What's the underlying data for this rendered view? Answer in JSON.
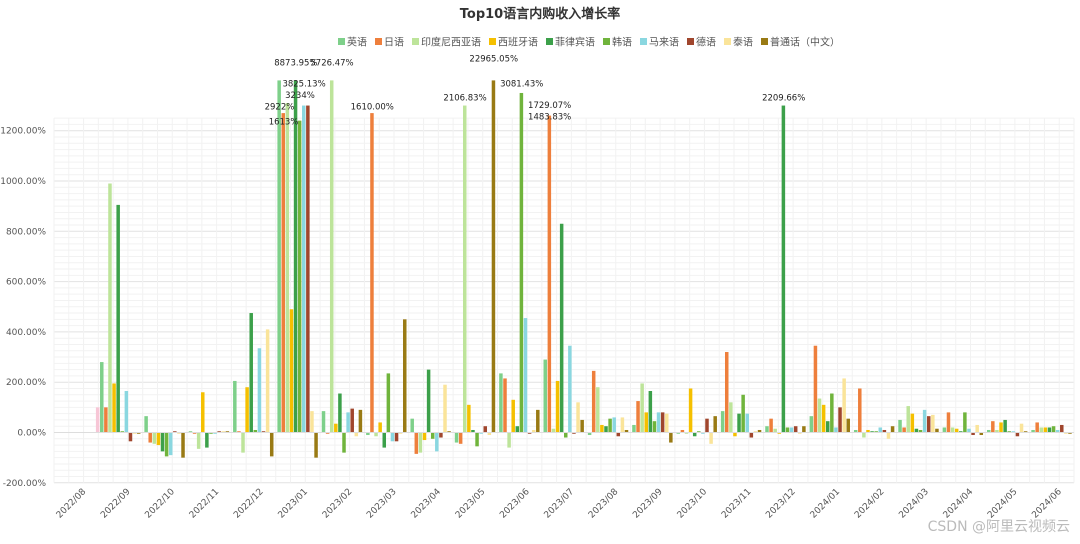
{
  "chart_data": {
    "type": "bar",
    "title": "Top10语言内购收入增长率",
    "legend_position": "top",
    "grid": true,
    "ylim": [
      -200,
      1400
    ],
    "y_ticks": [
      -200,
      0,
      200,
      400,
      600,
      800,
      1000,
      1200
    ],
    "y_tick_labels": [
      "-200.00%",
      "0.00%",
      "200.00%",
      "400.00%",
      "600.00%",
      "800.00%",
      "1000.00%",
      "1200.00%"
    ],
    "categories": [
      "2022/08",
      "2022/09",
      "2022/10",
      "2022/11",
      "2022/12",
      "2023/01",
      "2023/02",
      "2023/03",
      "2023/04",
      "2023/05",
      "2023/06",
      "2023/07",
      "2023/08",
      "2023/09",
      "2023/10",
      "2023/11",
      "2023/12",
      "2024/01",
      "2024/02",
      "2024/03",
      "2024/04",
      "2024/05",
      "2024/06"
    ],
    "series": [
      {
        "name": "英语",
        "color": "#7ed08a",
        "values": [
          null,
          280,
          65,
          5,
          205,
          1400,
          85,
          -10,
          55,
          -40,
          235,
          290,
          -10,
          30,
          -5,
          85,
          25,
          65,
          10,
          50,
          20,
          10,
          10
        ]
      },
      {
        "name": "日语",
        "color": "#ee7f3c",
        "values": [
          null,
          100,
          -40,
          -5,
          5,
          1270,
          -5,
          1270,
          -85,
          -45,
          215,
          1260,
          245,
          125,
          10,
          320,
          55,
          345,
          175,
          20,
          80,
          45,
          40
        ]
      },
      {
        "name": "印度尼西亚语",
        "color": "#bde49a",
        "values": [
          null,
          990,
          -45,
          -65,
          -80,
          1310,
          1400,
          -15,
          -80,
          1300,
          -60,
          15,
          180,
          195,
          -5,
          120,
          15,
          135,
          -20,
          105,
          20,
          10,
          20
        ]
      },
      {
        "name": "西班牙语",
        "color": "#f5c000",
        "values": [
          null,
          195,
          -50,
          160,
          180,
          490,
          35,
          40,
          -30,
          110,
          130,
          205,
          30,
          80,
          175,
          -15,
          -5,
          110,
          10,
          75,
          15,
          40,
          20
        ]
      },
      {
        "name": "菲律宾语",
        "color": "#3ca04a",
        "values": [
          null,
          905,
          -75,
          -60,
          475,
          1400,
          155,
          -60,
          250,
          10,
          25,
          830,
          25,
          165,
          -15,
          75,
          1300,
          45,
          5,
          15,
          5,
          50,
          20
        ]
      },
      {
        "name": "韩语",
        "color": "#70b43c",
        "values": [
          null,
          5,
          -95,
          -5,
          10,
          1240,
          -80,
          235,
          -25,
          -55,
          1350,
          -20,
          55,
          45,
          5,
          150,
          20,
          155,
          5,
          10,
          80,
          5,
          25
        ]
      },
      {
        "name": "马来语",
        "color": "#8ad7e0",
        "values": [
          null,
          165,
          -90,
          -5,
          335,
          1300,
          80,
          -35,
          -75,
          -5,
          455,
          345,
          60,
          80,
          -5,
          75,
          20,
          20,
          20,
          90,
          15,
          5,
          10
        ]
      },
      {
        "name": "德语",
        "color": "#a0462d",
        "values": [
          null,
          -35,
          5,
          5,
          5,
          1300,
          95,
          -35,
          -20,
          25,
          -5,
          -5,
          -15,
          80,
          55,
          -20,
          25,
          100,
          10,
          65,
          -10,
          -15,
          30
        ]
      },
      {
        "name": "泰语",
        "color": "#fae49a",
        "values": [
          null,
          -5,
          -5,
          5,
          410,
          85,
          -15,
          -5,
          190,
          -10,
          10,
          120,
          60,
          75,
          -45,
          5,
          -5,
          215,
          -25,
          70,
          30,
          35,
          -5
        ]
      },
      {
        "name": "普通话（中文）",
        "color": "#997a14",
        "values": [
          null,
          -5,
          -100,
          5,
          -95,
          -100,
          90,
          450,
          5,
          1400,
          90,
          50,
          10,
          -40,
          65,
          10,
          25,
          55,
          25,
          15,
          -10,
          5,
          -5
        ]
      }
    ],
    "extra_bars": [
      {
        "category": "2022/09",
        "color": "#f7c6d6",
        "value": 100
      }
    ],
    "annotations": [
      {
        "text": "8873.95%",
        "category": "2023/01",
        "series": "菲律宾语",
        "y": 1460
      },
      {
        "text": "2922%",
        "category": "2023/01",
        "series": "英语",
        "y": 1285
      },
      {
        "text": "3825.13%",
        "category": "2023/01",
        "series": "马来语",
        "y": 1375
      },
      {
        "text": "1613%",
        "category": "2023/01",
        "series": "日语",
        "y": 1225
      },
      {
        "text": "3234%",
        "category": "2023/01",
        "series": "韩语",
        "y": 1330
      },
      {
        "text": "5726.47%",
        "category": "2023/02",
        "series": "印度尼西亚语",
        "y": 1460
      },
      {
        "text": "1610.00%",
        "category": "2023/03",
        "series": "日语",
        "y": 1285
      },
      {
        "text": "2106.83%",
        "category": "2023/05",
        "series": "印度尼西亚语",
        "y": 1320
      },
      {
        "text": "22965.05%",
        "category": "2023/05",
        "series": "普通话（中文）",
        "y": 1475
      },
      {
        "text": "3081.43%",
        "category": "2023/06",
        "series": "韩语",
        "y": 1375
      },
      {
        "text": "1729.07%",
        "category": "2023/07",
        "series": "日语",
        "y": 1290
      },
      {
        "text": "1483.83%",
        "category": "2023/07",
        "series": "日语",
        "y": 1245
      },
      {
        "text": "2209.66%",
        "category": "2023/12",
        "series": "菲律宾语",
        "y": 1320
      }
    ]
  },
  "watermark": "CSDN @阿里云视频云"
}
